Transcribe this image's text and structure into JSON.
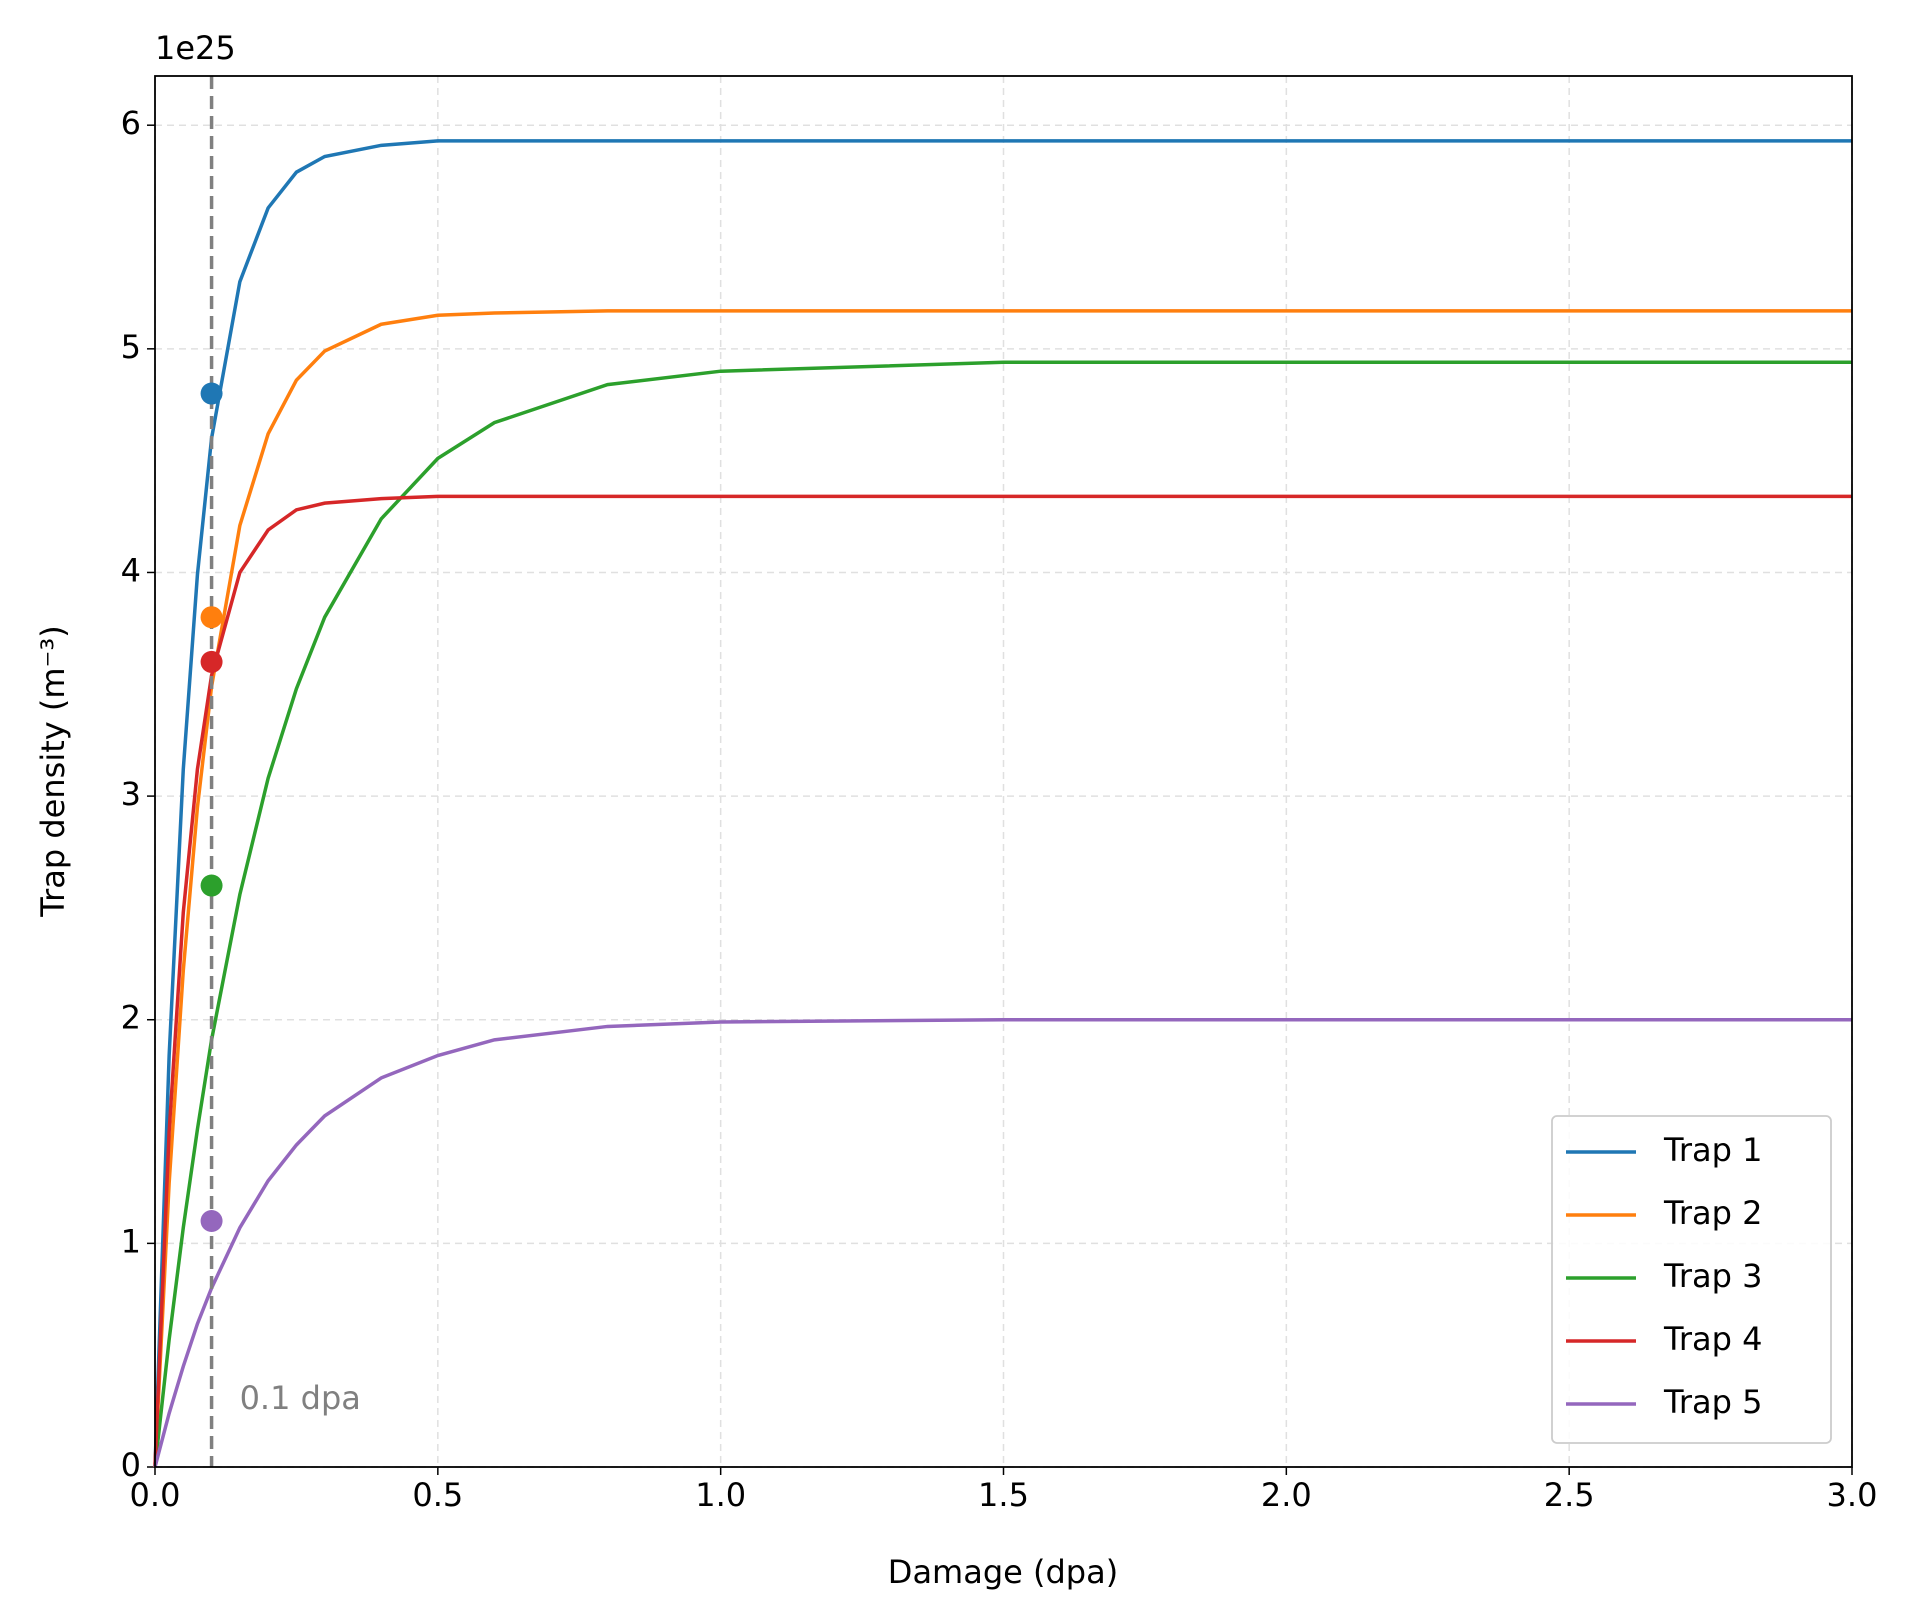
{
  "chart_data": {
    "type": "line",
    "y_offset_label": "1e25",
    "xlabel": "Damage (dpa)",
    "ylabel": "Trap density (m⁻³)",
    "x": [
      0,
      0.025,
      0.05,
      0.075,
      0.1,
      0.15,
      0.2,
      0.25,
      0.3,
      0.4,
      0.5,
      0.6,
      0.8,
      1.0,
      1.5,
      2.0,
      2.5,
      3.0
    ],
    "series": [
      {
        "name": "Trap 1",
        "color": "#1f77b4",
        "values": [
          0,
          1.84,
          3.12,
          3.99,
          4.6,
          5.3,
          5.63,
          5.79,
          5.86,
          5.91,
          5.93,
          5.93,
          5.93,
          5.93,
          5.93,
          5.93,
          5.93,
          5.93
        ],
        "point": {
          "x": 0.1,
          "y": 4.8
        }
      },
      {
        "name": "Trap 2",
        "color": "#ff7f0e",
        "values": [
          0,
          1.27,
          2.22,
          2.95,
          3.49,
          4.21,
          4.62,
          4.86,
          4.99,
          5.11,
          5.15,
          5.16,
          5.17,
          5.17,
          5.17,
          5.17,
          5.17,
          5.17
        ],
        "point": {
          "x": 0.1,
          "y": 3.8
        }
      },
      {
        "name": "Trap 3",
        "color": "#2ca02c",
        "values": [
          0,
          0.57,
          1.07,
          1.51,
          1.91,
          2.56,
          3.08,
          3.48,
          3.8,
          4.24,
          4.51,
          4.67,
          4.84,
          4.9,
          4.94,
          4.94,
          4.94,
          4.94
        ],
        "point": {
          "x": 0.1,
          "y": 2.6
        }
      },
      {
        "name": "Trap 4",
        "color": "#d62728",
        "values": [
          0,
          1.5,
          2.48,
          3.12,
          3.54,
          4.0,
          4.19,
          4.28,
          4.31,
          4.33,
          4.34,
          4.34,
          4.34,
          4.34,
          4.34,
          4.34,
          4.34,
          4.34
        ],
        "point": {
          "x": 0.1,
          "y": 3.6
        }
      },
      {
        "name": "Trap 5",
        "color": "#9467bd",
        "values": [
          0,
          0.24,
          0.45,
          0.64,
          0.8,
          1.07,
          1.28,
          1.44,
          1.57,
          1.74,
          1.84,
          1.91,
          1.97,
          1.99,
          2.0,
          2.0,
          2.0,
          2.0
        ],
        "point": {
          "x": 0.1,
          "y": 1.1
        }
      }
    ],
    "vline": {
      "x": 0.1,
      "label": "0.1 dpa",
      "color": "#808080"
    },
    "xlim": [
      0,
      3
    ],
    "xticks": [
      {
        "value": 0,
        "label": "0.0"
      },
      0.5,
      {
        "value": 1,
        "label": "1.0"
      },
      1.5,
      {
        "value": 2,
        "label": "2.0"
      },
      2.5,
      {
        "value": 3,
        "label": "3.0"
      }
    ],
    "ylim": [
      0,
      6.22
    ],
    "yticks": [
      0,
      1,
      2,
      3,
      4,
      5,
      6
    ],
    "grid": true,
    "legend": "lower right"
  }
}
